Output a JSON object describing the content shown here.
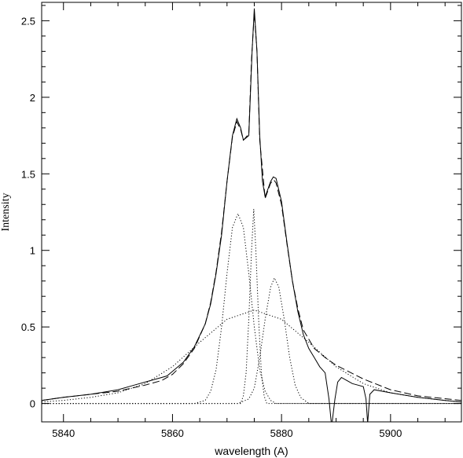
{
  "chart_data": {
    "type": "line",
    "title": "",
    "xlabel": "wavelength (A)",
    "ylabel": "Intensity",
    "xlim": [
      5836,
      5913
    ],
    "ylim": [
      -0.12,
      2.62
    ],
    "x_ticks": [
      5840,
      5860,
      5880,
      5900
    ],
    "x_tick_labels": [
      "5840",
      "5860",
      "5880",
      "5900"
    ],
    "y_ticks": [
      0,
      0.5,
      1,
      1.5,
      2,
      2.5
    ],
    "y_tick_labels": [
      "0",
      "0.5",
      "1",
      "1.5",
      "2",
      "2.5"
    ],
    "grid": false,
    "legend": "none",
    "series": [
      {
        "style": "solid",
        "x": [
          5836,
          5840,
          5845,
          5850,
          5853,
          5856,
          5858,
          5859,
          5860,
          5862,
          5864,
          5866,
          5867,
          5868,
          5869,
          5870,
          5871,
          5871.8,
          5872.5,
          5873,
          5874,
          5874.6,
          5875,
          5875.5,
          5876,
          5876.5,
          5877,
          5877.5,
          5878,
          5878.5,
          5879,
          5880,
          5881,
          5882,
          5883,
          5884,
          5885,
          5886,
          5887,
          5888,
          5888.7,
          5889.2,
          5889.8,
          5890.3,
          5891,
          5892,
          5893,
          5894,
          5895,
          5895.5,
          5895.8,
          5896.2,
          5897,
          5900,
          5905,
          5910,
          5913
        ],
        "y": [
          0.02,
          0.04,
          0.06,
          0.09,
          0.12,
          0.15,
          0.17,
          0.18,
          0.21,
          0.27,
          0.37,
          0.52,
          0.65,
          0.85,
          1.1,
          1.45,
          1.75,
          1.86,
          1.8,
          1.72,
          1.75,
          2.3,
          2.58,
          2.3,
          1.75,
          1.45,
          1.35,
          1.4,
          1.45,
          1.48,
          1.47,
          1.32,
          1.05,
          0.8,
          0.6,
          0.45,
          0.36,
          0.3,
          0.24,
          0.2,
          0.03,
          -0.15,
          0.03,
          0.14,
          0.17,
          0.15,
          0.13,
          0.12,
          0.11,
          0.03,
          -0.13,
          0.06,
          0.09,
          0.07,
          0.04,
          0.02,
          0.01
        ]
      },
      {
        "style": "dashed",
        "x": [
          5836,
          5840,
          5845,
          5850,
          5855,
          5858,
          5860,
          5862,
          5864,
          5866,
          5867,
          5868,
          5869,
          5870,
          5871,
          5871.8,
          5872.5,
          5873,
          5874,
          5874.5,
          5875,
          5875.5,
          5876,
          5877,
          5878,
          5878.6,
          5879,
          5880,
          5881,
          5882,
          5883,
          5884,
          5886,
          5888,
          5890,
          5895,
          5900,
          5905,
          5913
        ],
        "y": [
          0.02,
          0.04,
          0.06,
          0.08,
          0.12,
          0.15,
          0.19,
          0.26,
          0.36,
          0.52,
          0.66,
          0.86,
          1.12,
          1.45,
          1.74,
          1.84,
          1.79,
          1.72,
          1.76,
          2.25,
          2.55,
          2.3,
          1.72,
          1.34,
          1.44,
          1.46,
          1.44,
          1.3,
          1.04,
          0.8,
          0.62,
          0.48,
          0.36,
          0.3,
          0.25,
          0.16,
          0.09,
          0.05,
          0.02
        ]
      },
      {
        "style": "dotted",
        "x": [
          5836,
          5864,
          5866,
          5867,
          5868,
          5869,
          5870,
          5871,
          5872,
          5873,
          5874,
          5875,
          5876,
          5877,
          5878,
          5879,
          5880,
          5913
        ],
        "y": [
          0.0,
          0.0,
          0.02,
          0.08,
          0.22,
          0.5,
          0.85,
          1.15,
          1.24,
          1.15,
          0.85,
          0.5,
          0.22,
          0.08,
          0.02,
          0.0,
          0.0,
          0.0
        ]
      },
      {
        "style": "dotted",
        "x": [
          5836,
          5872.5,
          5873,
          5873.5,
          5874,
          5874.5,
          5874.9,
          5875.3,
          5875.8,
          5876.3,
          5876.8,
          5877.3,
          5913
        ],
        "y": [
          0.0,
          0.0,
          0.05,
          0.2,
          0.55,
          1.0,
          1.27,
          1.0,
          0.55,
          0.2,
          0.05,
          0.0,
          0.0
        ]
      },
      {
        "style": "dotted",
        "x": [
          5836,
          5872,
          5874,
          5875,
          5876,
          5877,
          5878,
          5878.7,
          5879.5,
          5880.5,
          5881.5,
          5882.5,
          5883.5,
          5885,
          5913
        ],
        "y": [
          0.0,
          0.0,
          0.03,
          0.1,
          0.3,
          0.55,
          0.76,
          0.82,
          0.76,
          0.55,
          0.3,
          0.12,
          0.04,
          0.0,
          0.0
        ]
      },
      {
        "style": "dotted",
        "x": [
          5836,
          5840,
          5845,
          5850,
          5855,
          5860,
          5865,
          5870,
          5875,
          5880,
          5885,
          5890,
          5895,
          5900,
          5905,
          5910,
          5913
        ],
        "y": [
          0.01,
          0.02,
          0.04,
          0.07,
          0.13,
          0.24,
          0.4,
          0.55,
          0.61,
          0.55,
          0.4,
          0.24,
          0.13,
          0.07,
          0.04,
          0.02,
          0.01
        ]
      }
    ]
  }
}
